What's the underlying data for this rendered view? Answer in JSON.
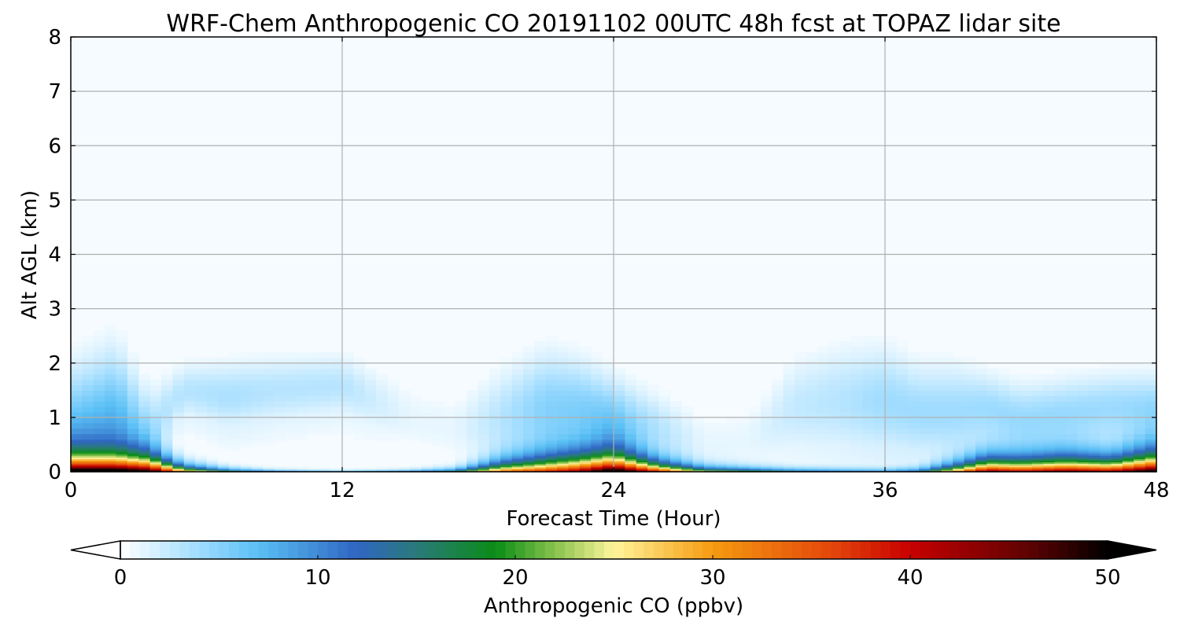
{
  "chart_data": {
    "type": "heatmap",
    "title": "WRF-Chem Anthropogenic CO 20191102 00UTC 48h fcst at TOPAZ lidar site",
    "xlabel": "Forecast Time (Hour)",
    "ylabel": "Alt AGL (km)",
    "xlim": [
      0,
      48
    ],
    "ylim": [
      0,
      8
    ],
    "x_ticks": [
      0,
      12,
      24,
      36,
      48
    ],
    "y_ticks": [
      0,
      1,
      2,
      3,
      4,
      5,
      6,
      7,
      8
    ],
    "grid": true,
    "colorbar": {
      "label": "Anthropogenic CO  (ppbv)",
      "range": [
        0,
        50
      ],
      "ticks": [
        0,
        10,
        20,
        30,
        40,
        50
      ],
      "extend": "both",
      "stops": [
        {
          "v": 0,
          "c": "#ffffff"
        },
        {
          "v": 4,
          "c": "#9fdcff"
        },
        {
          "v": 7,
          "c": "#59bff5"
        },
        {
          "v": 12,
          "c": "#2f66c2"
        },
        {
          "v": 15,
          "c": "#2a7a7a"
        },
        {
          "v": 19,
          "c": "#0a8c16"
        },
        {
          "v": 22,
          "c": "#87c24d"
        },
        {
          "v": 25,
          "c": "#fff59a"
        },
        {
          "v": 30,
          "c": "#f59a10"
        },
        {
          "v": 36,
          "c": "#e4470b"
        },
        {
          "v": 40,
          "c": "#c80000"
        },
        {
          "v": 46,
          "c": "#5e0202"
        },
        {
          "v": 50,
          "c": "#000000"
        }
      ]
    },
    "surface_profile": {
      "hours": [
        0,
        2,
        3.5,
        5,
        7,
        9,
        12,
        15,
        17,
        19,
        21,
        22.5,
        24,
        26,
        28,
        30,
        32,
        34,
        36,
        37.5,
        39,
        40.5,
        42,
        44,
        46,
        48
      ],
      "surface_ppbv": [
        56,
        56,
        54,
        34,
        22,
        16,
        12,
        16,
        20,
        36,
        40,
        46,
        58,
        42,
        26,
        24,
        18,
        14,
        12,
        16,
        32,
        48,
        44,
        48,
        46,
        56
      ],
      "scale_height_km": [
        0.26,
        0.26,
        0.24,
        0.1,
        0.05,
        0.03,
        0.02,
        0.03,
        0.05,
        0.15,
        0.22,
        0.26,
        0.28,
        0.15,
        0.08,
        0.06,
        0.05,
        0.05,
        0.05,
        0.06,
        0.12,
        0.2,
        0.2,
        0.22,
        0.2,
        0.28
      ]
    },
    "residual_layer": {
      "hours": [
        0,
        2,
        3.5,
        5,
        7,
        9,
        12,
        15,
        17,
        19,
        21,
        22.5,
        24,
        26,
        28,
        30,
        32,
        34,
        36,
        37.5,
        39,
        40.5,
        42,
        44,
        46,
        48
      ],
      "aloft_ppbv": [
        6,
        7,
        3,
        3,
        3.5,
        3,
        3,
        1,
        1,
        3,
        5,
        5,
        5,
        3,
        1,
        1,
        2.5,
        3,
        4,
        4,
        4,
        4,
        4,
        4,
        4,
        4
      ],
      "center_km": [
        0.8,
        1.0,
        0.8,
        1.5,
        1.4,
        1.5,
        1.6,
        1.0,
        0.8,
        1.0,
        1.2,
        1.2,
        1.0,
        0.8,
        0.5,
        0.6,
        1.2,
        1.3,
        1.3,
        1.1,
        1.1,
        1.2,
        1.0,
        1.1,
        1.2,
        1.2
      ],
      "width_km": [
        0.9,
        1.0,
        0.6,
        0.4,
        0.5,
        0.5,
        0.45,
        0.5,
        0.5,
        0.7,
        0.8,
        0.7,
        0.6,
        0.5,
        0.5,
        0.5,
        0.7,
        0.8,
        0.8,
        0.7,
        0.7,
        0.5,
        0.5,
        0.5,
        0.5,
        0.5
      ]
    }
  }
}
